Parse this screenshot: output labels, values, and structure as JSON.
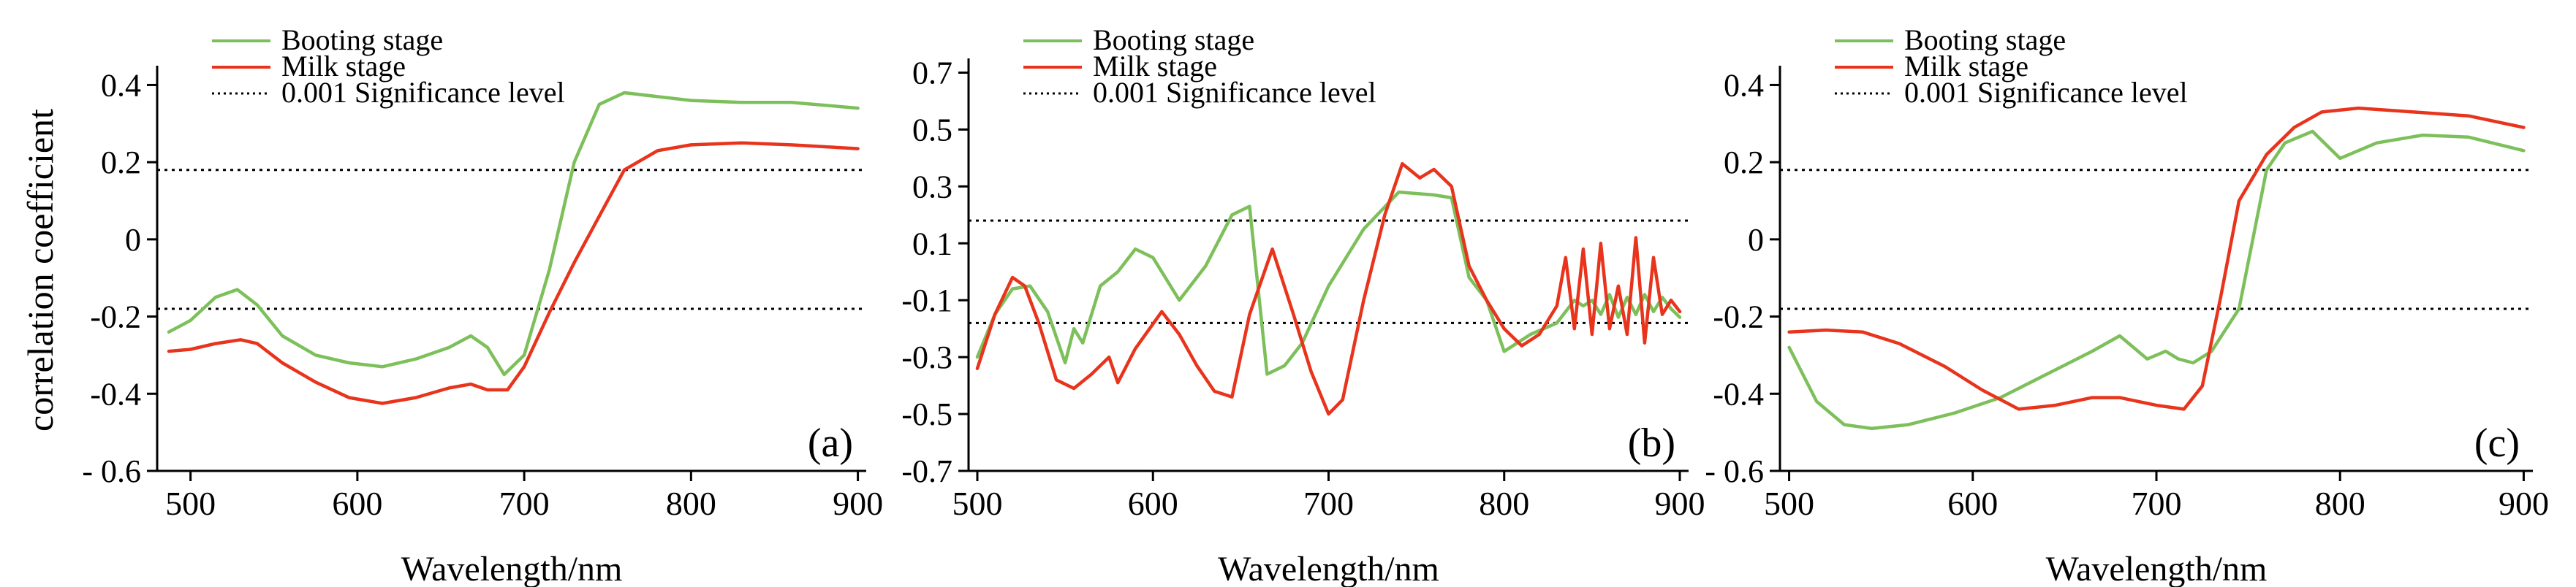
{
  "figure": {
    "y_axis_label": "correlation coefficient"
  },
  "legend": {
    "booting": "Booting stage",
    "milk": "Milk stage",
    "sig": "0.001 Significance level"
  },
  "colors": {
    "booting": "#7dc05b",
    "milk": "#e8341c",
    "sig": "#000000"
  },
  "chart_data": [
    {
      "type": "line",
      "panel_label": "(a)",
      "xlabel": "Wavelength/nm",
      "ylabel": "correlation coefficient",
      "xlim": [
        480,
        905
      ],
      "ylim": [
        -0.6,
        0.45
      ],
      "x_ticks": [
        500,
        600,
        700,
        800,
        900
      ],
      "y_ticks": [
        -0.6,
        -0.4,
        -0.2,
        0,
        0.2,
        0.4
      ],
      "y_tick_labels": [
        "- 0.6",
        "-0.4",
        "-0.2",
        "0",
        "0.2",
        "0.4"
      ],
      "significance_levels": [
        0.18,
        -0.18
      ],
      "series": [
        {
          "name": "Booting stage",
          "x": [
            487,
            500,
            515,
            528,
            540,
            555,
            575,
            595,
            615,
            635,
            655,
            668,
            678,
            688,
            700,
            715,
            730,
            745,
            760,
            780,
            800,
            830,
            860,
            900
          ],
          "values": [
            -0.24,
            -0.21,
            -0.15,
            -0.13,
            -0.17,
            -0.25,
            -0.3,
            -0.32,
            -0.33,
            -0.31,
            -0.28,
            -0.25,
            -0.28,
            -0.35,
            -0.3,
            -0.08,
            0.2,
            0.35,
            0.38,
            0.37,
            0.36,
            0.355,
            0.355,
            0.34
          ]
        },
        {
          "name": "Milk stage",
          "x": [
            487,
            500,
            515,
            530,
            540,
            555,
            575,
            595,
            615,
            635,
            655,
            668,
            678,
            690,
            700,
            715,
            730,
            745,
            760,
            780,
            800,
            830,
            860,
            900
          ],
          "values": [
            -0.29,
            -0.285,
            -0.27,
            -0.26,
            -0.27,
            -0.32,
            -0.37,
            -0.41,
            -0.425,
            -0.41,
            -0.385,
            -0.375,
            -0.39,
            -0.39,
            -0.33,
            -0.19,
            -0.06,
            0.06,
            0.18,
            0.23,
            0.245,
            0.25,
            0.245,
            0.235
          ]
        }
      ]
    },
    {
      "type": "line",
      "panel_label": "(b)",
      "xlabel": "Wavelength/nm",
      "ylabel": "",
      "xlim": [
        495,
        905
      ],
      "ylim": [
        -0.7,
        0.75
      ],
      "x_ticks": [
        500,
        600,
        700,
        800,
        900
      ],
      "y_ticks": [
        -0.7,
        -0.5,
        -0.3,
        -0.1,
        0.1,
        0.3,
        0.5,
        0.7
      ],
      "y_tick_labels": [
        "-0.7",
        "-0.5",
        "-0.3",
        "-0.1",
        "0.1",
        "0.3",
        "0.5",
        "0.7"
      ],
      "significance_levels": [
        0.18,
        -0.18
      ],
      "series": [
        {
          "name": "Booting stage",
          "x": [
            500,
            510,
            520,
            530,
            540,
            550,
            555,
            560,
            570,
            580,
            590,
            600,
            615,
            630,
            645,
            655,
            665,
            675,
            685,
            700,
            720,
            740,
            760,
            770,
            780,
            790,
            800,
            815,
            830,
            840,
            845,
            850,
            855,
            860,
            865,
            870,
            875,
            880,
            885,
            890,
            895,
            900
          ],
          "values": [
            -0.3,
            -0.15,
            -0.06,
            -0.05,
            -0.14,
            -0.32,
            -0.2,
            -0.25,
            -0.05,
            0,
            0.08,
            0.05,
            -0.1,
            0.02,
            0.2,
            0.23,
            -0.36,
            -0.33,
            -0.25,
            -0.05,
            0.15,
            0.28,
            0.27,
            0.26,
            -0.02,
            -0.1,
            -0.28,
            -0.22,
            -0.18,
            -0.1,
            -0.12,
            -0.1,
            -0.15,
            -0.08,
            -0.16,
            -0.09,
            -0.15,
            -0.08,
            -0.14,
            -0.09,
            -0.13,
            -0.16
          ]
        },
        {
          "name": "Milk stage",
          "x": [
            500,
            510,
            520,
            527,
            535,
            545,
            555,
            565,
            575,
            580,
            590,
            605,
            615,
            625,
            635,
            645,
            655,
            668,
            680,
            690,
            700,
            708,
            720,
            732,
            742,
            752,
            760,
            770,
            780,
            790,
            800,
            810,
            820,
            830,
            835,
            840,
            845,
            850,
            855,
            860,
            865,
            870,
            875,
            880,
            885,
            890,
            895,
            900
          ],
          "values": [
            -0.34,
            -0.15,
            -0.02,
            -0.05,
            -0.18,
            -0.38,
            -0.41,
            -0.36,
            -0.3,
            -0.39,
            -0.27,
            -0.14,
            -0.22,
            -0.33,
            -0.42,
            -0.44,
            -0.15,
            0.08,
            -0.15,
            -0.35,
            -0.5,
            -0.45,
            -0.1,
            0.2,
            0.38,
            0.33,
            0.36,
            0.3,
            0.02,
            -0.1,
            -0.2,
            -0.26,
            -0.22,
            -0.12,
            0.05,
            -0.2,
            0.08,
            -0.22,
            0.1,
            -0.2,
            -0.05,
            -0.22,
            0.12,
            -0.25,
            0.05,
            -0.15,
            -0.1,
            -0.14
          ]
        }
      ]
    },
    {
      "type": "line",
      "panel_label": "(c)",
      "xlabel": "Wavelength/nm",
      "ylabel": "",
      "xlim": [
        495,
        905
      ],
      "ylim": [
        -0.6,
        0.45
      ],
      "x_ticks": [
        500,
        600,
        700,
        800,
        900
      ],
      "y_ticks": [
        -0.6,
        -0.4,
        -0.2,
        0,
        0.2,
        0.4
      ],
      "y_tick_labels": [
        "- 0.6",
        "-0.4",
        "-0.2",
        "0",
        "0.2",
        "0.4"
      ],
      "significance_levels": [
        0.18,
        -0.18
      ],
      "series": [
        {
          "name": "Booting stage",
          "x": [
            500,
            515,
            530,
            545,
            565,
            590,
            615,
            640,
            665,
            680,
            695,
            705,
            712,
            720,
            730,
            745,
            760,
            770,
            785,
            800,
            820,
            845,
            870,
            900
          ],
          "values": [
            -0.28,
            -0.42,
            -0.48,
            -0.49,
            -0.48,
            -0.45,
            -0.41,
            -0.35,
            -0.29,
            -0.25,
            -0.31,
            -0.29,
            -0.31,
            -0.32,
            -0.29,
            -0.18,
            0.18,
            0.25,
            0.28,
            0.21,
            0.25,
            0.27,
            0.265,
            0.23
          ]
        },
        {
          "name": "Milk stage",
          "x": [
            500,
            520,
            540,
            560,
            585,
            605,
            625,
            645,
            665,
            680,
            700,
            715,
            725,
            735,
            745,
            760,
            775,
            790,
            810,
            840,
            870,
            890,
            900
          ],
          "values": [
            -0.24,
            -0.235,
            -0.24,
            -0.27,
            -0.33,
            -0.39,
            -0.44,
            -0.43,
            -0.41,
            -0.41,
            -0.43,
            -0.44,
            -0.38,
            -0.15,
            0.1,
            0.22,
            0.29,
            0.33,
            0.34,
            0.33,
            0.32,
            0.3,
            0.29
          ]
        }
      ]
    }
  ]
}
